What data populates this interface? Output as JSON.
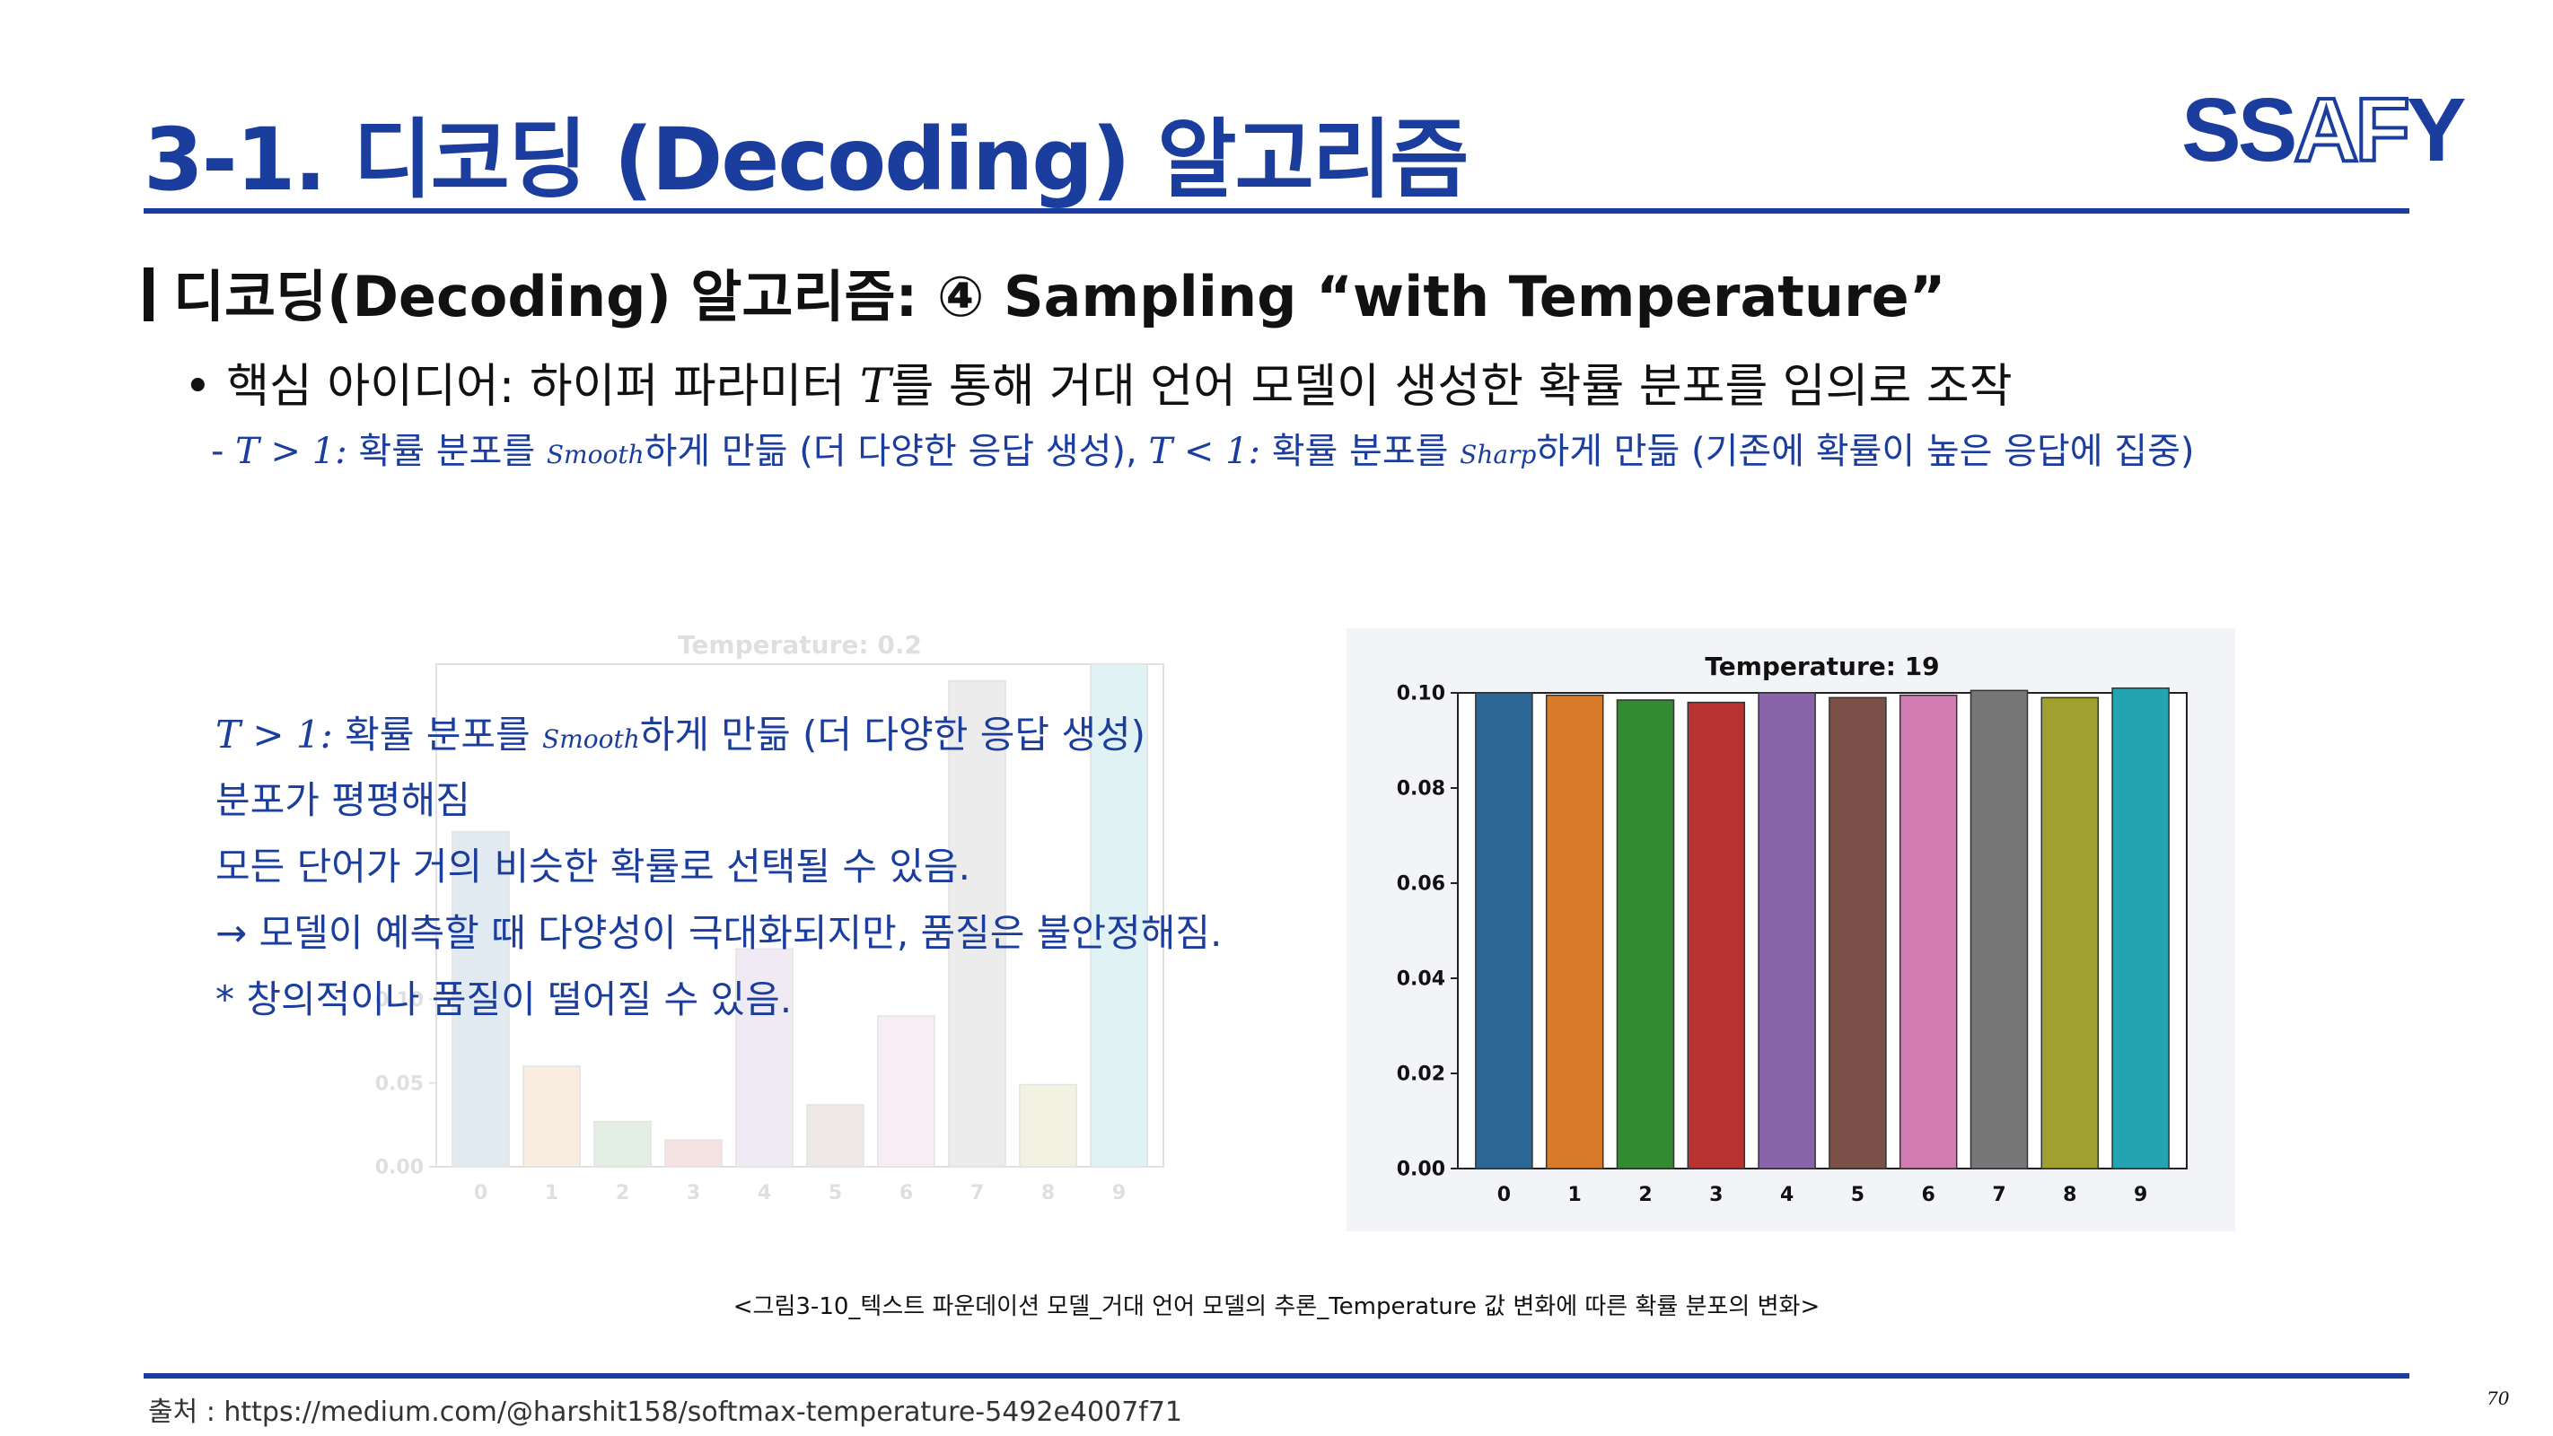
{
  "title": "3-1. 디코딩 (Decoding) 알고리즘",
  "logo": {
    "part1": "SS",
    "part2": "AF",
    "part3": "Y",
    "color": "#1a3d9e"
  },
  "section_heading": "디코딩(Decoding) 알고리즘: ④ Sampling “with Temperature”",
  "bullet": {
    "prefix": "핵심 아이디어: 하이퍼 파라미터 ",
    "var": "T",
    "suffix": "를 통해 거대 언어 모델이 생성한 확률 분포를 임의로 조작"
  },
  "sub_bullet": {
    "dash": "-",
    "cond1": "T > 1:",
    "text1": " 확률 분포를 ",
    "word1": "Smooth",
    "text2": "하게 만듦 ",
    "paren1": "(더 다양한 응답 생성),",
    "cond2": "T < 1:",
    "text3": " 확률 분포를 ",
    "word2": "Sharp",
    "text4": "하게 만듦 ",
    "paren2": "(기존에 확률이 높은 응답에 집중)"
  },
  "explanation": {
    "line1_cond": "T > 1:",
    "line1_text": " 확률 분포를 ",
    "line1_word": "Smooth",
    "line1_rest": "하게 만듦 (더 다양한 응답 생성)",
    "line2": "분포가 평평해짐",
    "line3": "모든 단어가 거의 비슷한 확률로 선택될 수 있음.",
    "line4": "→ 모델이 예측할 때 다양성이 극대화되지만, 품질은 불안정해짐.",
    "line5": "* 창의적이나 품질이 떨어질 수 있음."
  },
  "chart_data": [
    {
      "type": "bar",
      "title": "Temperature: 19",
      "categories": [
        "0",
        "1",
        "2",
        "3",
        "4",
        "5",
        "6",
        "7",
        "8",
        "9"
      ],
      "values": [
        0.1,
        0.0995,
        0.0985,
        0.098,
        0.1,
        0.099,
        0.0995,
        0.1005,
        0.099,
        0.101
      ],
      "ylim": [
        0,
        0.1
      ],
      "yticks": [
        "0.00",
        "0.02",
        "0.04",
        "0.06",
        "0.08",
        "0.10"
      ],
      "colors": [
        "#2a6796",
        "#d97a2a",
        "#338a33",
        "#b83232",
        "#8a64a8",
        "#7a5048",
        "#d27cb4",
        "#777777",
        "#a0a030",
        "#24a3b0"
      ]
    },
    {
      "type": "bar",
      "title": "Temperature: 0.2",
      "categories": [
        "0",
        "1",
        "2",
        "3",
        "4",
        "5",
        "6",
        "7",
        "8",
        "9"
      ],
      "values": [
        0.2,
        0.06,
        0.027,
        0.016,
        0.13,
        0.037,
        0.09,
        0.29,
        0.049,
        0.3
      ],
      "ylim": [
        0,
        0.3
      ],
      "yticks": [
        "0.00",
        "0.05",
        "0.10"
      ],
      "colors": [
        "#2a6796",
        "#d97a2a",
        "#338a33",
        "#b83232",
        "#8a64a8",
        "#7a5048",
        "#d27cb4",
        "#777777",
        "#a0a030",
        "#24a3b0"
      ]
    }
  ],
  "caption": "<그림3-10_텍스트 파운데이션 모델_거대 언어 모델의 추론_Temperature 값 변화에 따른 확률 분포의 변화>",
  "source": "출처 : https://medium.com/@harshit158/softmax-temperature-5492e4007f71",
  "page_number": "70"
}
